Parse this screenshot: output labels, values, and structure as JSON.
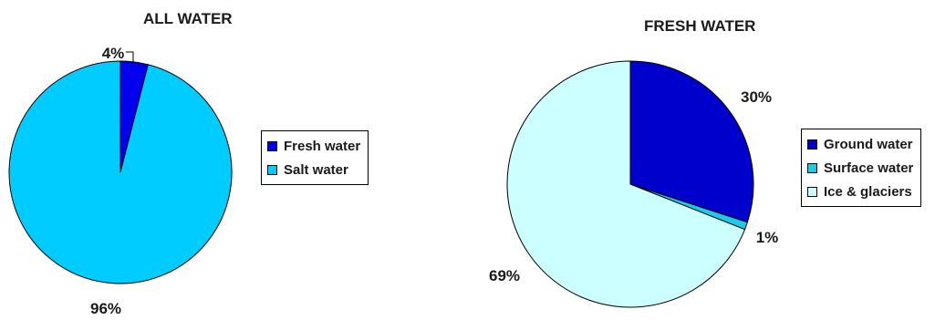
{
  "chart_data": [
    {
      "type": "pie",
      "title": "ALL WATER",
      "categories": [
        "Fresh water",
        "Salt water"
      ],
      "values": [
        4,
        96
      ],
      "labels": [
        "4%",
        "96%"
      ],
      "colors": [
        "#0000ee",
        "#00ccff"
      ],
      "legend": "right"
    },
    {
      "type": "pie",
      "title": "FRESH WATER",
      "categories": [
        "Ground water",
        "Surface water",
        "Ice & glaciers"
      ],
      "values": [
        30,
        1,
        69
      ],
      "labels": [
        "30%",
        "1%",
        "69%"
      ],
      "colors": [
        "#0000cc",
        "#1ec8e8",
        "#ccffff"
      ],
      "legend": "right"
    }
  ]
}
